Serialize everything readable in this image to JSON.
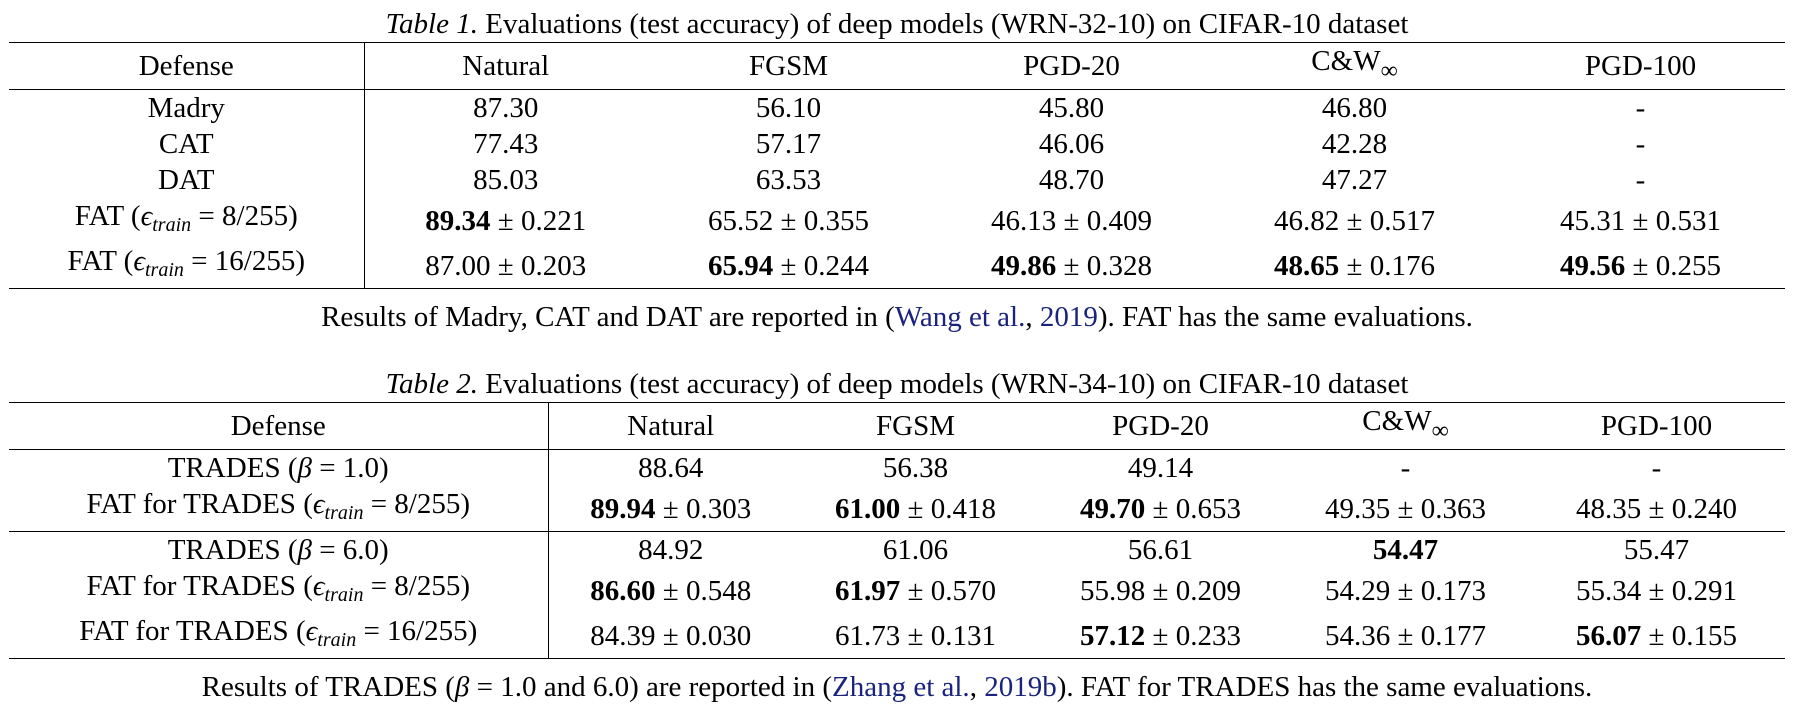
{
  "table1": {
    "label": "Table 1.",
    "caption": "Evaluations (test accuracy) of deep models (WRN-32-10) on CIFAR-10 dataset",
    "headers": [
      "Defense",
      "Natural",
      "FGSM",
      "PGD-20",
      "C&W",
      "PGD-100"
    ],
    "header_cw_subscript": "∞",
    "rows": [
      {
        "defense": "Madry",
        "cells": [
          {
            "value": "87.30",
            "bold": false,
            "std": ""
          },
          {
            "value": "56.10",
            "bold": false,
            "std": ""
          },
          {
            "value": "45.80",
            "bold": false,
            "std": ""
          },
          {
            "value": "46.80",
            "bold": false,
            "std": ""
          },
          {
            "value": "-",
            "bold": false,
            "std": ""
          }
        ]
      },
      {
        "defense": "CAT",
        "cells": [
          {
            "value": "77.43",
            "bold": false,
            "std": ""
          },
          {
            "value": "57.17",
            "bold": false,
            "std": ""
          },
          {
            "value": "46.06",
            "bold": false,
            "std": ""
          },
          {
            "value": "42.28",
            "bold": false,
            "std": ""
          },
          {
            "value": "-",
            "bold": false,
            "std": ""
          }
        ]
      },
      {
        "defense": "DAT",
        "cells": [
          {
            "value": "85.03",
            "bold": false,
            "std": ""
          },
          {
            "value": "63.53",
            "bold": false,
            "std": ""
          },
          {
            "value": "48.70",
            "bold": false,
            "std": ""
          },
          {
            "value": "47.27",
            "bold": false,
            "std": ""
          },
          {
            "value": "-",
            "bold": false,
            "std": ""
          }
        ]
      },
      {
        "defense_prefix": "FAT (",
        "epsilon": "ϵ",
        "eps_sub": "train",
        "eq": " = 8/255)",
        "cells": [
          {
            "value": "89.34",
            "bold": true,
            "std": " ± 0.221"
          },
          {
            "value": "65.52",
            "bold": false,
            "std": " ± 0.355"
          },
          {
            "value": "46.13",
            "bold": false,
            "std": " ± 0.409"
          },
          {
            "value": "46.82",
            "bold": false,
            "std": " ± 0.517"
          },
          {
            "value": "45.31",
            "bold": false,
            "std": " ± 0.531"
          }
        ]
      },
      {
        "defense_prefix": "FAT (",
        "epsilon": "ϵ",
        "eps_sub": "train",
        "eq": " = 16/255)",
        "cells": [
          {
            "value": "87.00",
            "bold": false,
            "std": " ± 0.203"
          },
          {
            "value": "65.94",
            "bold": true,
            "std": " ± 0.244"
          },
          {
            "value": "49.86",
            "bold": true,
            "std": " ± 0.328"
          },
          {
            "value": "48.65",
            "bold": true,
            "std": " ± 0.176"
          },
          {
            "value": "49.56",
            "bold": true,
            "std": " ± 0.255"
          }
        ]
      }
    ],
    "note_before": "Results of Madry, CAT and DAT are reported in (",
    "note_cite_author": "Wang et al.",
    "note_sep": ", ",
    "note_cite_year": "2019",
    "note_after": "). FAT has the same evaluations."
  },
  "table2": {
    "label": "Table 2.",
    "caption": "Evaluations (test accuracy) of deep models (WRN-34-10) on CIFAR-10 dataset",
    "headers": [
      "Defense",
      "Natural",
      "FGSM",
      "PGD-20",
      "C&W",
      "PGD-100"
    ],
    "header_cw_subscript": "∞",
    "rows": [
      {
        "defense_prefix": "TRADES (",
        "beta": "β",
        "eq": " = 1.0)",
        "kind": "beta",
        "break": false,
        "cells": [
          {
            "value": "88.64",
            "bold": false,
            "std": ""
          },
          {
            "value": "56.38",
            "bold": false,
            "std": ""
          },
          {
            "value": "49.14",
            "bold": false,
            "std": ""
          },
          {
            "value": "-",
            "bold": false,
            "std": ""
          },
          {
            "value": "-",
            "bold": false,
            "std": ""
          }
        ]
      },
      {
        "defense_prefix": "FAT for TRADES (",
        "epsilon": "ϵ",
        "eps_sub": "train",
        "eq": " = 8/255)",
        "kind": "eps",
        "break": false,
        "cells": [
          {
            "value": "89.94",
            "bold": true,
            "std": " ± 0.303"
          },
          {
            "value": "61.00",
            "bold": true,
            "std": " ± 0.418"
          },
          {
            "value": "49.70",
            "bold": true,
            "std": " ± 0.653"
          },
          {
            "value": "49.35",
            "bold": false,
            "std": " ± 0.363"
          },
          {
            "value": "48.35",
            "bold": false,
            "std": " ± 0.240"
          }
        ]
      },
      {
        "defense_prefix": "TRADES (",
        "beta": "β",
        "eq": " = 6.0)",
        "kind": "beta",
        "break": true,
        "cells": [
          {
            "value": "84.92",
            "bold": false,
            "std": ""
          },
          {
            "value": "61.06",
            "bold": false,
            "std": ""
          },
          {
            "value": "56.61",
            "bold": false,
            "std": ""
          },
          {
            "value": "54.47",
            "bold": true,
            "std": ""
          },
          {
            "value": "55.47",
            "bold": false,
            "std": ""
          }
        ]
      },
      {
        "defense_prefix": "FAT for TRADES (",
        "epsilon": "ϵ",
        "eps_sub": "train",
        "eq": " = 8/255)",
        "kind": "eps",
        "break": false,
        "cells": [
          {
            "value": "86.60",
            "bold": true,
            "std": " ± 0.548"
          },
          {
            "value": "61.97",
            "bold": true,
            "std": " ± 0.570"
          },
          {
            "value": "55.98",
            "bold": false,
            "std": " ± 0.209"
          },
          {
            "value": "54.29",
            "bold": false,
            "std": " ± 0.173"
          },
          {
            "value": "55.34",
            "bold": false,
            "std": " ± 0.291"
          }
        ]
      },
      {
        "defense_prefix": "FAT for TRADES (",
        "epsilon": "ϵ",
        "eps_sub": "train",
        "eq": " = 16/255)",
        "kind": "eps",
        "break": false,
        "cells": [
          {
            "value": "84.39",
            "bold": false,
            "std": " ± 0.030"
          },
          {
            "value": "61.73",
            "bold": false,
            "std": " ± 0.131"
          },
          {
            "value": "57.12",
            "bold": true,
            "std": " ± 0.233"
          },
          {
            "value": "54.36",
            "bold": false,
            "std": " ± 0.177"
          },
          {
            "value": "56.07",
            "bold": true,
            "std": " ± 0.155"
          }
        ]
      }
    ],
    "note_before": "Results of TRADES (",
    "note_beta": "β",
    "note_mid": " = 1.0 and 6.0) are reported in (",
    "note_cite_author": "Zhang et al.",
    "note_sep": ", ",
    "note_cite_year": "2019b",
    "note_after": "). FAT for TRADES has the same evaluations."
  },
  "colors": {
    "citation": "#1a237e",
    "text": "#000000"
  }
}
